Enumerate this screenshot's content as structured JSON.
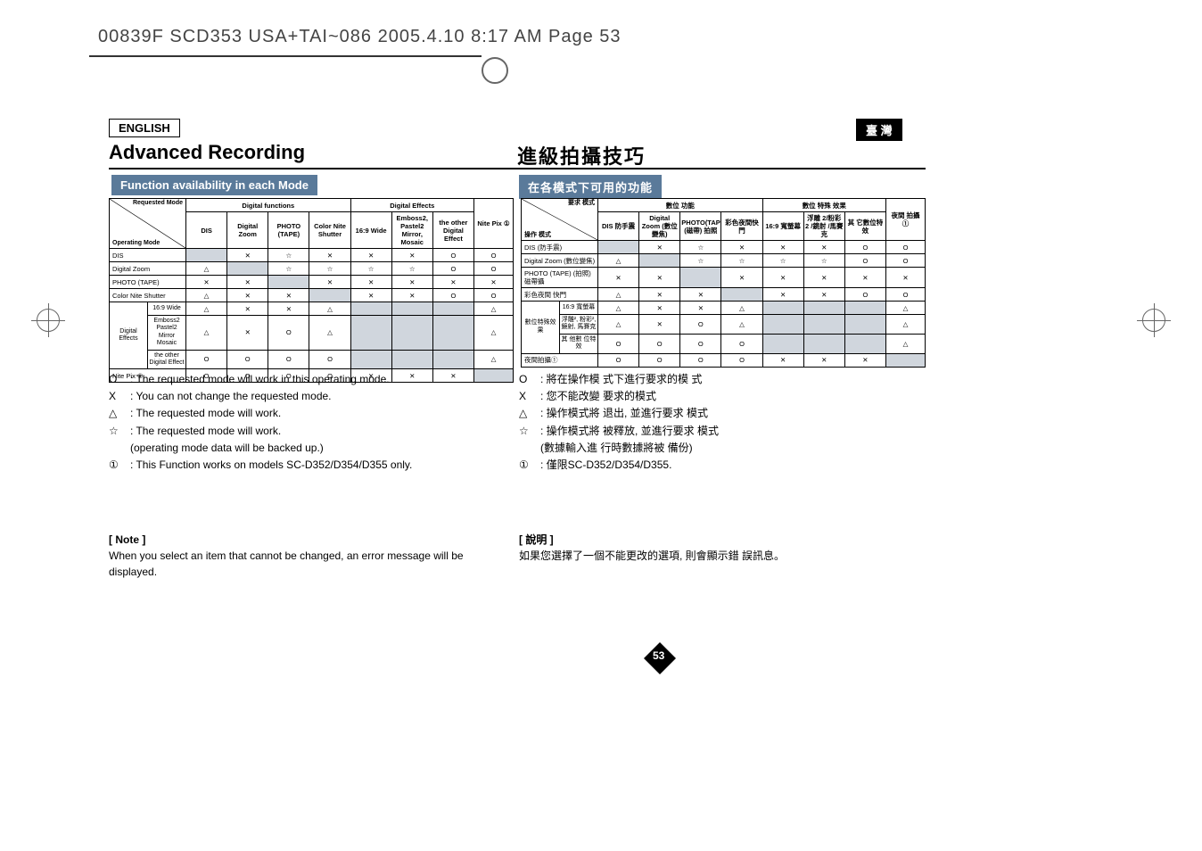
{
  "header": {
    "scanline": "00839F SCD353 USA+TAI~086  2005.4.10  8:17 AM  Page 53"
  },
  "lang": {
    "en": "ENGLISH",
    "zh": "臺 灣"
  },
  "title": {
    "en": "Advanced Recording",
    "zh": "進級拍攝技巧"
  },
  "subtitle": {
    "en": "Function availability in each Mode",
    "zh": "在各模式下可用的功能"
  },
  "page_number": "53",
  "colors": {
    "subtitle_bg": "#5a7a9a",
    "shade": "#d0d6dd"
  },
  "table_en": {
    "corner_top": "Requested Mode",
    "corner_bot": "Operating Mode",
    "group1": "Digital functions",
    "group2": "Digital Effects",
    "cols": [
      "DIS",
      "Digital Zoom",
      "PHOTO (TAPE)",
      "Color Nite Shutter",
      "16:9 Wide",
      "Emboss2, Pastel2 Mirror, Mosaic",
      "the other Digital Effect",
      "Nite Pix ①"
    ],
    "rows": [
      {
        "label": "DIS",
        "cells": [
          "",
          "✕",
          "☆",
          "✕",
          "✕",
          "✕",
          "O",
          "O"
        ],
        "shade": [
          0
        ]
      },
      {
        "label": "Digital Zoom",
        "cells": [
          "△",
          "",
          "☆",
          "☆",
          "☆",
          "☆",
          "O",
          "O"
        ],
        "shade": [
          1
        ]
      },
      {
        "label": "PHOTO (TAPE)",
        "cells": [
          "✕",
          "✕",
          "",
          "✕",
          "✕",
          "✕",
          "✕",
          "✕"
        ],
        "shade": [
          2
        ]
      },
      {
        "label": "Color Nite Shutter",
        "cells": [
          "△",
          "✕",
          "✕",
          "",
          "✕",
          "✕",
          "O",
          "O"
        ],
        "shade": [
          3
        ]
      },
      {
        "label": "16:9 Wide",
        "cells": [
          "△",
          "✕",
          "✕",
          "△",
          "",
          "",
          "",
          "△"
        ],
        "shade": [
          4,
          5,
          6
        ],
        "prefix": "Digital Effects",
        "prefix_rows": 3
      },
      {
        "label": "Emboss2 Pastel2 Mirror Mosaic",
        "cells": [
          "△",
          "✕",
          "O",
          "△",
          "",
          "",
          "",
          "△"
        ],
        "shade": [
          4,
          5,
          6
        ]
      },
      {
        "label": "the other Digital Effect",
        "cells": [
          "O",
          "O",
          "O",
          "O",
          "",
          "",
          "",
          "△"
        ],
        "shade": [
          4,
          5,
          6
        ]
      },
      {
        "label": "Nite Pix ①",
        "cells": [
          "O",
          "O",
          "O",
          "O",
          "✕",
          "✕",
          "✕",
          ""
        ],
        "shade": [
          7
        ]
      }
    ]
  },
  "table_zh": {
    "corner_top": "要求 模式",
    "corner_bot": "操作 模式",
    "group1": "數位 功能",
    "group2": "數位 特殊 效果",
    "cols": [
      "DIS 防手震",
      "Digital Zoom (數位變焦)",
      "PHOTO(TAPE) (磁帶) 拍照",
      "彩色夜間快門",
      "16:9 寬螢幕",
      "浮雕 2/粉彩 2 /鏡射 /馬賽克",
      "其 它數位特效",
      "夜間 拍攝 ①"
    ],
    "rows": [
      {
        "label": "DIS (防手震)",
        "cells": [
          "",
          "✕",
          "☆",
          "✕",
          "✕",
          "✕",
          "O",
          "O"
        ],
        "shade": [
          0
        ]
      },
      {
        "label": "Digital Zoom (數位變焦)",
        "cells": [
          "△",
          "",
          "☆",
          "☆",
          "☆",
          "☆",
          "O",
          "O"
        ],
        "shade": [
          1
        ]
      },
      {
        "label": "PHOTO (TAPE) (拍照) 磁帶攝",
        "cells": [
          "✕",
          "✕",
          "",
          "✕",
          "✕",
          "✕",
          "✕",
          "✕"
        ],
        "shade": [
          2
        ]
      },
      {
        "label": "彩色夜間 快門",
        "cells": [
          "△",
          "✕",
          "✕",
          "",
          "✕",
          "✕",
          "O",
          "O"
        ],
        "shade": [
          3
        ]
      },
      {
        "label": "16:9 寬螢幕",
        "cells": [
          "△",
          "✕",
          "✕",
          "△",
          "",
          "",
          "",
          "△"
        ],
        "shade": [
          4,
          5,
          6
        ],
        "prefix": "數位特殊效果",
        "prefix_rows": 3
      },
      {
        "label": "浮雕², 粉彩², 鏡射, 馬賽克",
        "cells": [
          "△",
          "✕",
          "O",
          "△",
          "",
          "",
          "",
          "△"
        ],
        "shade": [
          4,
          5,
          6
        ]
      },
      {
        "label": "其 他數 位特 效",
        "cells": [
          "O",
          "O",
          "O",
          "O",
          "",
          "",
          "",
          "△"
        ],
        "shade": [
          4,
          5,
          6
        ]
      },
      {
        "label": "夜間拍攝①",
        "cells": [
          "O",
          "O",
          "O",
          "O",
          "✕",
          "✕",
          "✕",
          ""
        ],
        "shade": [
          7
        ]
      }
    ]
  },
  "legend_en": [
    {
      "sym": "O",
      "txt": ": The requested mode will work in this operating mode."
    },
    {
      "sym": "X",
      "txt": ": You can not change the requested mode."
    },
    {
      "sym": "△",
      "txt": ": The requested mode will work."
    },
    {
      "sym": "☆",
      "txt": ": The requested mode will work."
    },
    {
      "sym": "",
      "txt": "  (operating mode data will be backed up.)"
    },
    {
      "sym": "①",
      "txt": ": This Function works on models SC-D352/D354/D355 only."
    }
  ],
  "legend_zh": [
    {
      "sym": "O",
      "txt": ": 將在操作模 式下進行要求的模 式"
    },
    {
      "sym": "X",
      "txt": ": 您不能改變 要求的模式"
    },
    {
      "sym": "△",
      "txt": ": 操作模式將 退出, 並進行要求 模式"
    },
    {
      "sym": "☆",
      "txt": ": 操作模式將 被釋放, 並進行要求 模式"
    },
    {
      "sym": "",
      "txt": "  (數據輸入進 行時數據將被 備份)"
    },
    {
      "sym": "①",
      "txt": ": 僅限SC-D352/D354/D355."
    }
  ],
  "note_en": {
    "title": "[ Note ]",
    "body": "When you select an item that cannot be changed, an error message will be displayed."
  },
  "note_zh": {
    "title": "[ 說明 ]",
    "body": "如果您選擇了一個不能更改的選項, 則會顯示錯 誤訊息。"
  }
}
